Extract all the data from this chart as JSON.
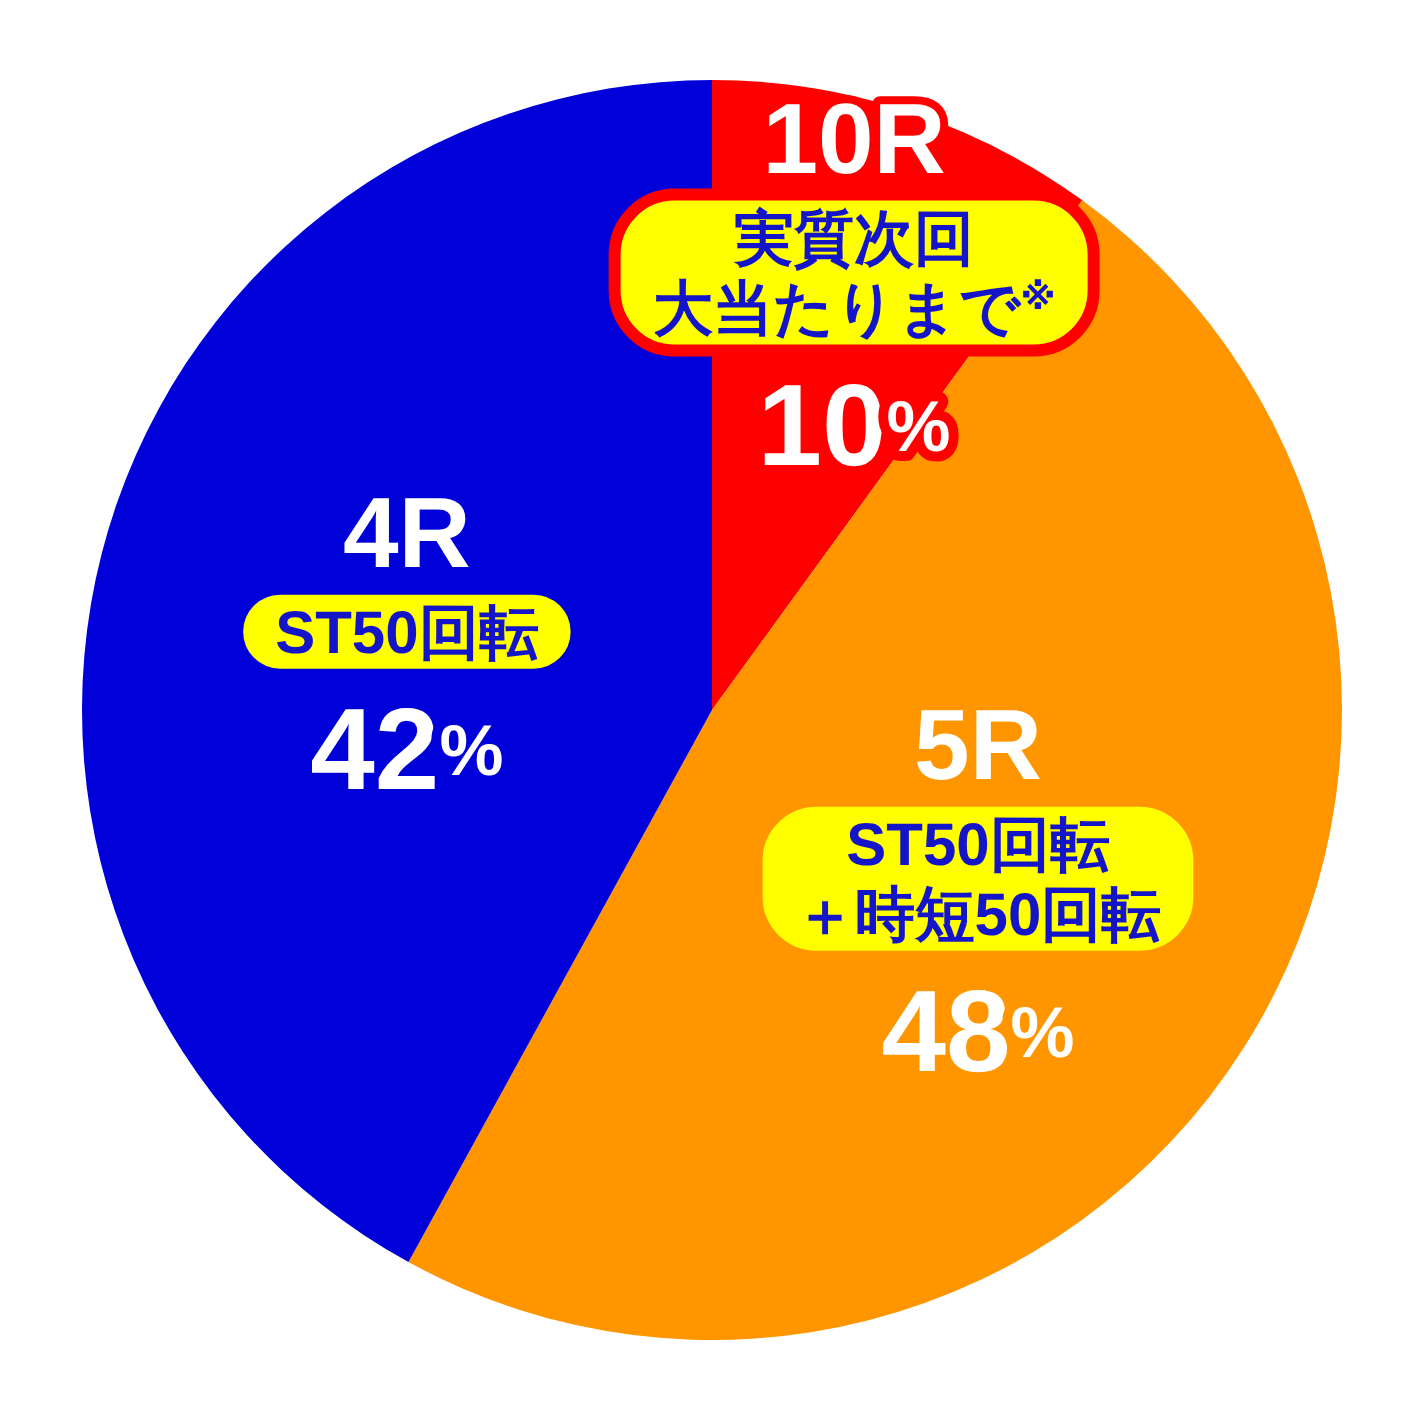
{
  "chart_data": {
    "type": "pie",
    "categories": [
      "10R",
      "5R",
      "4R"
    ],
    "values": [
      10,
      48,
      42
    ],
    "colors": [
      "#ff0000",
      "#ff9600",
      "#0000d8"
    ],
    "value_labels": [
      "10%",
      "48%",
      "42%"
    ],
    "annotations": [
      "実質次回大当たりまで$^{※}$",
      "ST50回転＋時短50回転",
      "ST50回転"
    ]
  }
}
